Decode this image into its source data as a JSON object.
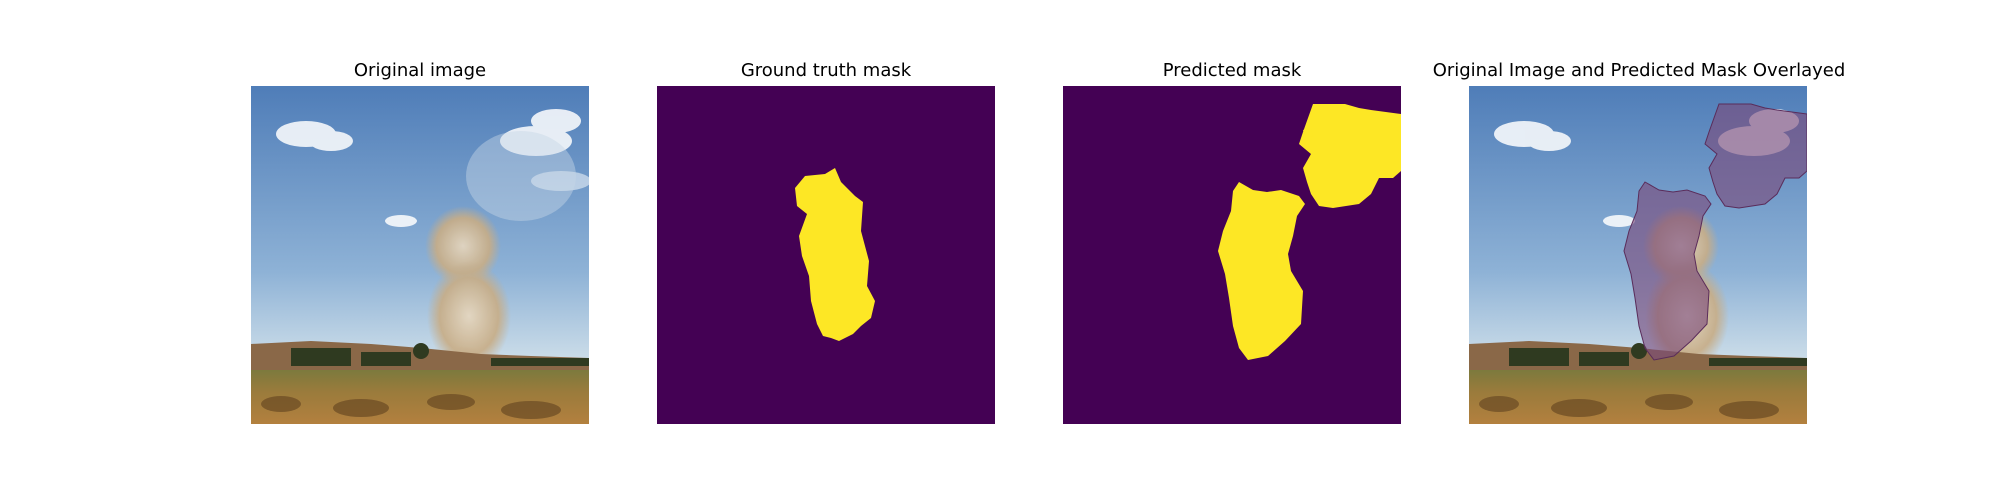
{
  "figure": {
    "panels": [
      {
        "title": "Original image"
      },
      {
        "title": "Ground truth mask"
      },
      {
        "title": "Predicted mask"
      },
      {
        "title": "Original Image and Predicted Mask Overlayed"
      }
    ]
  },
  "colors": {
    "mask_background": "#440154",
    "mask_foreground": "#FDE725",
    "overlay_tint": "#7A4A7A"
  }
}
